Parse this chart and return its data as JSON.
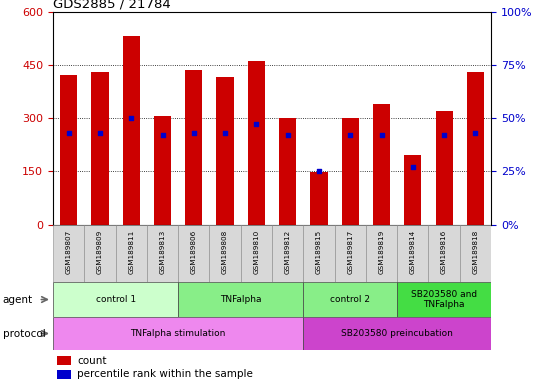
{
  "title": "GDS2885 / 21784",
  "samples": [
    "GSM189807",
    "GSM189809",
    "GSM189811",
    "GSM189813",
    "GSM189806",
    "GSM189808",
    "GSM189810",
    "GSM189812",
    "GSM189815",
    "GSM189817",
    "GSM189819",
    "GSM189814",
    "GSM189816",
    "GSM189818"
  ],
  "counts": [
    420,
    430,
    530,
    305,
    435,
    415,
    460,
    300,
    148,
    300,
    340,
    195,
    320,
    430
  ],
  "percentile_ranks": [
    43,
    43,
    50,
    42,
    43,
    43,
    47,
    42,
    25,
    42,
    42,
    27,
    42,
    43
  ],
  "ylim_left": [
    0,
    600
  ],
  "ylim_right": [
    0,
    100
  ],
  "yticks_left": [
    0,
    150,
    300,
    450,
    600
  ],
  "yticks_right": [
    0,
    25,
    50,
    75,
    100
  ],
  "bar_color": "#cc0000",
  "dot_color": "#0000cc",
  "agent_groups": [
    {
      "label": "control 1",
      "start": 0,
      "end": 4,
      "color": "#ccffcc"
    },
    {
      "label": "TNFalpha",
      "start": 4,
      "end": 8,
      "color": "#88ee88"
    },
    {
      "label": "control 2",
      "start": 8,
      "end": 11,
      "color": "#88ee88"
    },
    {
      "label": "SB203580 and\nTNFalpha",
      "start": 11,
      "end": 14,
      "color": "#44dd44"
    }
  ],
  "protocol_groups": [
    {
      "label": "TNFalpha stimulation",
      "start": 0,
      "end": 8,
      "color": "#ee88ee"
    },
    {
      "label": "SB203580 preincubation",
      "start": 8,
      "end": 14,
      "color": "#cc44cc"
    }
  ],
  "bg_color": "#ffffff",
  "tick_label_color_left": "#cc0000",
  "tick_label_color_right": "#0000cc",
  "bar_width": 0.55
}
